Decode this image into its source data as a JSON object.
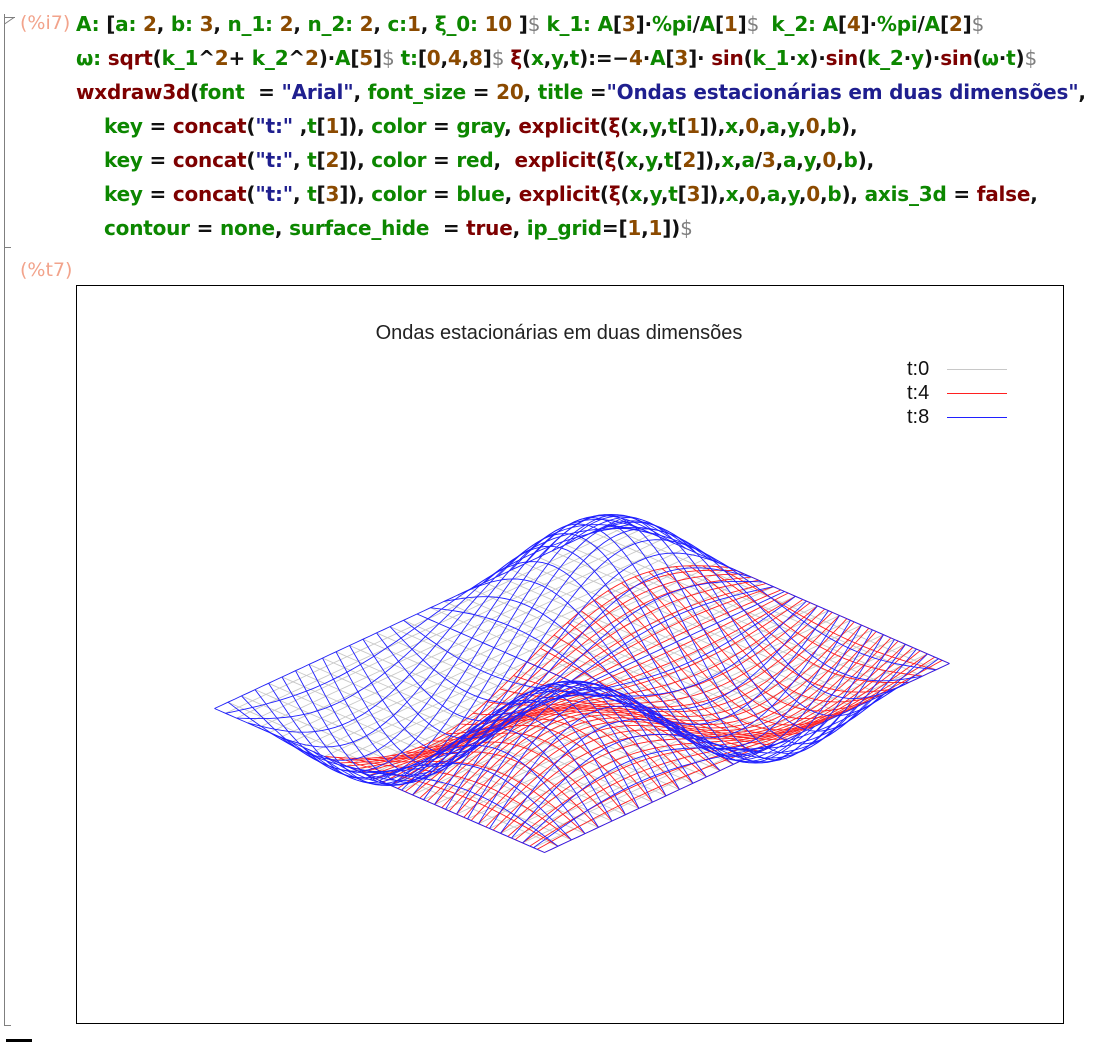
{
  "cell": {
    "input_prompt": "(%i7)",
    "output_prompt": "(%t7)",
    "code_lines": [
      [
        [
          "v",
          "A: "
        ],
        [
          "p",
          "["
        ],
        [
          "v",
          "a: "
        ],
        [
          "n",
          "2"
        ],
        [
          "p",
          ", "
        ],
        [
          "v",
          "b: "
        ],
        [
          "n",
          "3"
        ],
        [
          "p",
          ", "
        ],
        [
          "v",
          "n_1: "
        ],
        [
          "n",
          "2"
        ],
        [
          "p",
          ", "
        ],
        [
          "v",
          "n_2: "
        ],
        [
          "n",
          "2"
        ],
        [
          "p",
          ", "
        ],
        [
          "v",
          "c:"
        ],
        [
          "n",
          "1"
        ],
        [
          "p",
          ", "
        ],
        [
          "v",
          "ξ_0: "
        ],
        [
          "n",
          "10"
        ],
        [
          "p",
          " ]"
        ],
        [
          "d",
          "$ "
        ],
        [
          "v",
          "k_1: "
        ],
        [
          "v",
          "A"
        ],
        [
          "p",
          "["
        ],
        [
          "n",
          "3"
        ],
        [
          "p",
          "]"
        ],
        [
          "p",
          "·"
        ],
        [
          "v",
          "%pi"
        ],
        [
          "p",
          "/"
        ],
        [
          "v",
          "A"
        ],
        [
          "p",
          "["
        ],
        [
          "n",
          "1"
        ],
        [
          "p",
          "]"
        ],
        [
          "d",
          "$  "
        ],
        [
          "v",
          "k_2: "
        ],
        [
          "v",
          "A"
        ],
        [
          "p",
          "["
        ],
        [
          "n",
          "4"
        ],
        [
          "p",
          "]"
        ],
        [
          "p",
          "·"
        ],
        [
          "v",
          "%pi"
        ],
        [
          "p",
          "/"
        ],
        [
          "v",
          "A"
        ],
        [
          "p",
          "["
        ],
        [
          "n",
          "2"
        ],
        [
          "p",
          "]"
        ],
        [
          "d",
          "$"
        ]
      ],
      [
        [
          "v",
          "ω: "
        ],
        [
          "k",
          "sqrt"
        ],
        [
          "p",
          "("
        ],
        [
          "v",
          "k_1"
        ],
        [
          "p",
          "^"
        ],
        [
          "n",
          "2"
        ],
        [
          "p",
          "+ "
        ],
        [
          "v",
          "k_2"
        ],
        [
          "p",
          "^"
        ],
        [
          "n",
          "2"
        ],
        [
          "p",
          ")·"
        ],
        [
          "v",
          "A"
        ],
        [
          "p",
          "["
        ],
        [
          "n",
          "5"
        ],
        [
          "p",
          "]"
        ],
        [
          "d",
          "$ "
        ],
        [
          "v",
          "t:"
        ],
        [
          "p",
          "["
        ],
        [
          "n",
          "0"
        ],
        [
          "p",
          ","
        ],
        [
          "n",
          "4"
        ],
        [
          "p",
          ","
        ],
        [
          "n",
          "8"
        ],
        [
          "p",
          "]"
        ],
        [
          "d",
          "$ "
        ],
        [
          "k",
          "ξ"
        ],
        [
          "p",
          "("
        ],
        [
          "v",
          "x"
        ],
        [
          "p",
          ","
        ],
        [
          "v",
          "y"
        ],
        [
          "p",
          ","
        ],
        [
          "v",
          "t"
        ],
        [
          "p",
          "):=−"
        ],
        [
          "n",
          "4"
        ],
        [
          "p",
          "·"
        ],
        [
          "v",
          "A"
        ],
        [
          "p",
          "["
        ],
        [
          "n",
          "3"
        ],
        [
          "p",
          "]· "
        ],
        [
          "k",
          "sin"
        ],
        [
          "p",
          "("
        ],
        [
          "v",
          "k_1"
        ],
        [
          "p",
          "·"
        ],
        [
          "v",
          "x"
        ],
        [
          "p",
          ")·"
        ],
        [
          "k",
          "sin"
        ],
        [
          "p",
          "("
        ],
        [
          "v",
          "k_2"
        ],
        [
          "p",
          "·"
        ],
        [
          "v",
          "y"
        ],
        [
          "p",
          ")·"
        ],
        [
          "k",
          "sin"
        ],
        [
          "p",
          "("
        ],
        [
          "v",
          "ω"
        ],
        [
          "p",
          "·"
        ],
        [
          "v",
          "t"
        ],
        [
          "p",
          ")"
        ],
        [
          "d",
          "$"
        ]
      ],
      [
        [
          "k",
          "wxdraw3d"
        ],
        [
          "p",
          "("
        ],
        [
          "v",
          "font"
        ],
        [
          "p",
          "  = "
        ],
        [
          "s",
          "\"Arial\""
        ],
        [
          "p",
          ", "
        ],
        [
          "v",
          "font_size"
        ],
        [
          "p",
          " = "
        ],
        [
          "n",
          "20"
        ],
        [
          "p",
          ", "
        ],
        [
          "v",
          "title"
        ],
        [
          "p",
          " ="
        ],
        [
          "s",
          "\"Ondas estacionárias em duas dimensões\""
        ],
        [
          "p",
          ","
        ]
      ],
      [
        [
          "v",
          "key"
        ],
        [
          "p",
          " = "
        ],
        [
          "k",
          "concat"
        ],
        [
          "p",
          "("
        ],
        [
          "s",
          "\"t:\""
        ],
        [
          "p",
          " ,"
        ],
        [
          "v",
          "t"
        ],
        [
          "p",
          "["
        ],
        [
          "n",
          "1"
        ],
        [
          "p",
          "]), "
        ],
        [
          "v",
          "color"
        ],
        [
          "p",
          " = "
        ],
        [
          "v",
          "gray"
        ],
        [
          "p",
          ", "
        ],
        [
          "k",
          "explicit"
        ],
        [
          "p",
          "("
        ],
        [
          "k",
          "ξ"
        ],
        [
          "p",
          "("
        ],
        [
          "v",
          "x"
        ],
        [
          "p",
          ","
        ],
        [
          "v",
          "y"
        ],
        [
          "p",
          ","
        ],
        [
          "v",
          "t"
        ],
        [
          "p",
          "["
        ],
        [
          "n",
          "1"
        ],
        [
          "p",
          "]),"
        ],
        [
          "v",
          "x"
        ],
        [
          "p",
          ","
        ],
        [
          "n",
          "0"
        ],
        [
          "p",
          ","
        ],
        [
          "v",
          "a"
        ],
        [
          "p",
          ","
        ],
        [
          "v",
          "y"
        ],
        [
          "p",
          ","
        ],
        [
          "n",
          "0"
        ],
        [
          "p",
          ","
        ],
        [
          "v",
          "b"
        ],
        [
          "p",
          "),"
        ]
      ],
      [
        [
          "v",
          "key"
        ],
        [
          "p",
          " = "
        ],
        [
          "k",
          "concat"
        ],
        [
          "p",
          "("
        ],
        [
          "s",
          "\"t:\""
        ],
        [
          "p",
          ", "
        ],
        [
          "v",
          "t"
        ],
        [
          "p",
          "["
        ],
        [
          "n",
          "2"
        ],
        [
          "p",
          "]), "
        ],
        [
          "v",
          "color"
        ],
        [
          "p",
          " = "
        ],
        [
          "v",
          "red"
        ],
        [
          "p",
          ",  "
        ],
        [
          "k",
          "explicit"
        ],
        [
          "p",
          "("
        ],
        [
          "k",
          "ξ"
        ],
        [
          "p",
          "("
        ],
        [
          "v",
          "x"
        ],
        [
          "p",
          ","
        ],
        [
          "v",
          "y"
        ],
        [
          "p",
          ","
        ],
        [
          "v",
          "t"
        ],
        [
          "p",
          "["
        ],
        [
          "n",
          "2"
        ],
        [
          "p",
          "]),"
        ],
        [
          "v",
          "x"
        ],
        [
          "p",
          ","
        ],
        [
          "v",
          "a"
        ],
        [
          "p",
          "/"
        ],
        [
          "n",
          "3"
        ],
        [
          "p",
          ","
        ],
        [
          "v",
          "a"
        ],
        [
          "p",
          ","
        ],
        [
          "v",
          "y"
        ],
        [
          "p",
          ","
        ],
        [
          "n",
          "0"
        ],
        [
          "p",
          ","
        ],
        [
          "v",
          "b"
        ],
        [
          "p",
          "),"
        ]
      ],
      [
        [
          "v",
          "key"
        ],
        [
          "p",
          " = "
        ],
        [
          "k",
          "concat"
        ],
        [
          "p",
          "("
        ],
        [
          "s",
          "\"t:\""
        ],
        [
          "p",
          ", "
        ],
        [
          "v",
          "t"
        ],
        [
          "p",
          "["
        ],
        [
          "n",
          "3"
        ],
        [
          "p",
          "]), "
        ],
        [
          "v",
          "color"
        ],
        [
          "p",
          " = "
        ],
        [
          "v",
          "blue"
        ],
        [
          "p",
          ", "
        ],
        [
          "k",
          "explicit"
        ],
        [
          "p",
          "("
        ],
        [
          "k",
          "ξ"
        ],
        [
          "p",
          "("
        ],
        [
          "v",
          "x"
        ],
        [
          "p",
          ","
        ],
        [
          "v",
          "y"
        ],
        [
          "p",
          ","
        ],
        [
          "v",
          "t"
        ],
        [
          "p",
          "["
        ],
        [
          "n",
          "3"
        ],
        [
          "p",
          "]),"
        ],
        [
          "v",
          "x"
        ],
        [
          "p",
          ","
        ],
        [
          "n",
          "0"
        ],
        [
          "p",
          ","
        ],
        [
          "v",
          "a"
        ],
        [
          "p",
          ","
        ],
        [
          "v",
          "y"
        ],
        [
          "p",
          ","
        ],
        [
          "n",
          "0"
        ],
        [
          "p",
          ","
        ],
        [
          "v",
          "b"
        ],
        [
          "p",
          "), "
        ],
        [
          "v",
          "axis_3d"
        ],
        [
          "p",
          " = "
        ],
        [
          "k",
          "false"
        ],
        [
          "p",
          ","
        ]
      ],
      [
        [
          "v",
          "contour"
        ],
        [
          "p",
          " = "
        ],
        [
          "v",
          "none"
        ],
        [
          "p",
          ", "
        ],
        [
          "v",
          "surface_hide"
        ],
        [
          "p",
          "  = "
        ],
        [
          "k",
          "true"
        ],
        [
          "p",
          ", "
        ],
        [
          "v",
          "ip_grid"
        ],
        [
          "p",
          "=["
        ],
        [
          "n",
          "1"
        ],
        [
          "p",
          ","
        ],
        [
          "n",
          "1"
        ],
        [
          "p",
          "])"
        ],
        [
          "d",
          "$"
        ]
      ]
    ]
  },
  "plot": {
    "title": "Ondas estacionárias em duas dimensões",
    "legend": [
      {
        "label": "t:0",
        "color": "#c8c8c8"
      },
      {
        "label": "t:4",
        "color": "#ff2020"
      },
      {
        "label": "t:8",
        "color": "#2020ff"
      }
    ]
  },
  "chart_data": {
    "type": "surface3d",
    "title": "Ondas estacionárias em duas dimensões",
    "function": "ξ(x,y,t) = -4·A[3]·sin(k_1·x)·sin(k_2·y)·sin(ω·t)",
    "parameters": {
      "a": 2,
      "b": 3,
      "n_1": 2,
      "n_2": 2,
      "c": 1,
      "ξ_0": 10
    },
    "series": [
      {
        "name": "t:0",
        "t": 0,
        "color": "#c8c8c8",
        "x_range": [
          0,
          2
        ],
        "y_range": [
          0,
          3
        ]
      },
      {
        "name": "t:4",
        "t": 4,
        "color": "#ff2020",
        "x_range": [
          0.6667,
          2
        ],
        "y_range": [
          0,
          3
        ]
      },
      {
        "name": "t:8",
        "t": 8,
        "color": "#2020ff",
        "x_range": [
          0,
          2
        ],
        "y_range": [
          0,
          3
        ]
      }
    ],
    "axes_visible": false,
    "surface_hide": true,
    "legend_position": "top-right"
  }
}
